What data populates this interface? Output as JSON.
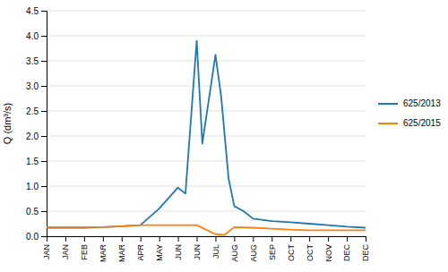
{
  "chart_data": {
    "type": "line",
    "ylabel": "Q (dm³/s)",
    "xlim": [
      0,
      17
    ],
    "xticks": [
      {
        "value": 0,
        "label": "JAN"
      },
      {
        "value": 1,
        "label": "JAN"
      },
      {
        "value": 2,
        "label": "FEB"
      },
      {
        "value": 3,
        "label": "MAR"
      },
      {
        "value": 4,
        "label": "MAR"
      },
      {
        "value": 5,
        "label": "APR"
      },
      {
        "value": 6,
        "label": "MAY"
      },
      {
        "value": 7,
        "label": "JUN"
      },
      {
        "value": 8,
        "label": "JUN"
      },
      {
        "value": 9,
        "label": "JUL"
      },
      {
        "value": 10,
        "label": "AUG"
      },
      {
        "value": 11,
        "label": "AUG"
      },
      {
        "value": 12,
        "label": "SEP"
      },
      {
        "value": 13,
        "label": "OCT"
      },
      {
        "value": 14,
        "label": "OCT"
      },
      {
        "value": 15,
        "label": "NOV"
      },
      {
        "value": 16,
        "label": "DEC"
      },
      {
        "value": 17,
        "label": "DEC"
      }
    ],
    "ylim": [
      0.0,
      4.5
    ],
    "yticks": [
      {
        "value": 0.0,
        "label": "0.0"
      },
      0.5,
      {
        "value": 1.0,
        "label": "1.0"
      },
      1.5,
      {
        "value": 2.0,
        "label": "2.0"
      },
      2.5,
      {
        "value": 3.0,
        "label": "3.0"
      },
      3.5,
      {
        "value": 4.0,
        "label": "4.0"
      },
      4.5
    ],
    "grid": true,
    "legend": "right",
    "series": [
      {
        "name": "625/2013",
        "x": [
          0,
          1,
          2,
          3,
          4,
          5,
          6,
          7,
          7.4,
          8,
          8.3,
          9,
          9.3,
          9.7,
          10,
          10.5,
          11,
          12,
          13,
          14,
          15,
          16,
          17
        ],
        "values": [
          0.17,
          0.17,
          0.17,
          0.18,
          0.2,
          0.22,
          0.55,
          0.97,
          0.85,
          3.9,
          1.85,
          3.62,
          2.8,
          1.15,
          0.6,
          0.5,
          0.35,
          0.3,
          0.28,
          0.25,
          0.22,
          0.19,
          0.17
        ]
      },
      {
        "name": "625/2015",
        "x": [
          0,
          1,
          2,
          3,
          4,
          5,
          6,
          7,
          8,
          9,
          9.5,
          10,
          11,
          12,
          13,
          14,
          15,
          16,
          17
        ],
        "values": [
          0.18,
          0.18,
          0.18,
          0.18,
          0.2,
          0.22,
          0.22,
          0.22,
          0.22,
          0.04,
          0.03,
          0.18,
          0.17,
          0.15,
          0.13,
          0.12,
          0.12,
          0.12,
          0.12
        ]
      }
    ]
  }
}
